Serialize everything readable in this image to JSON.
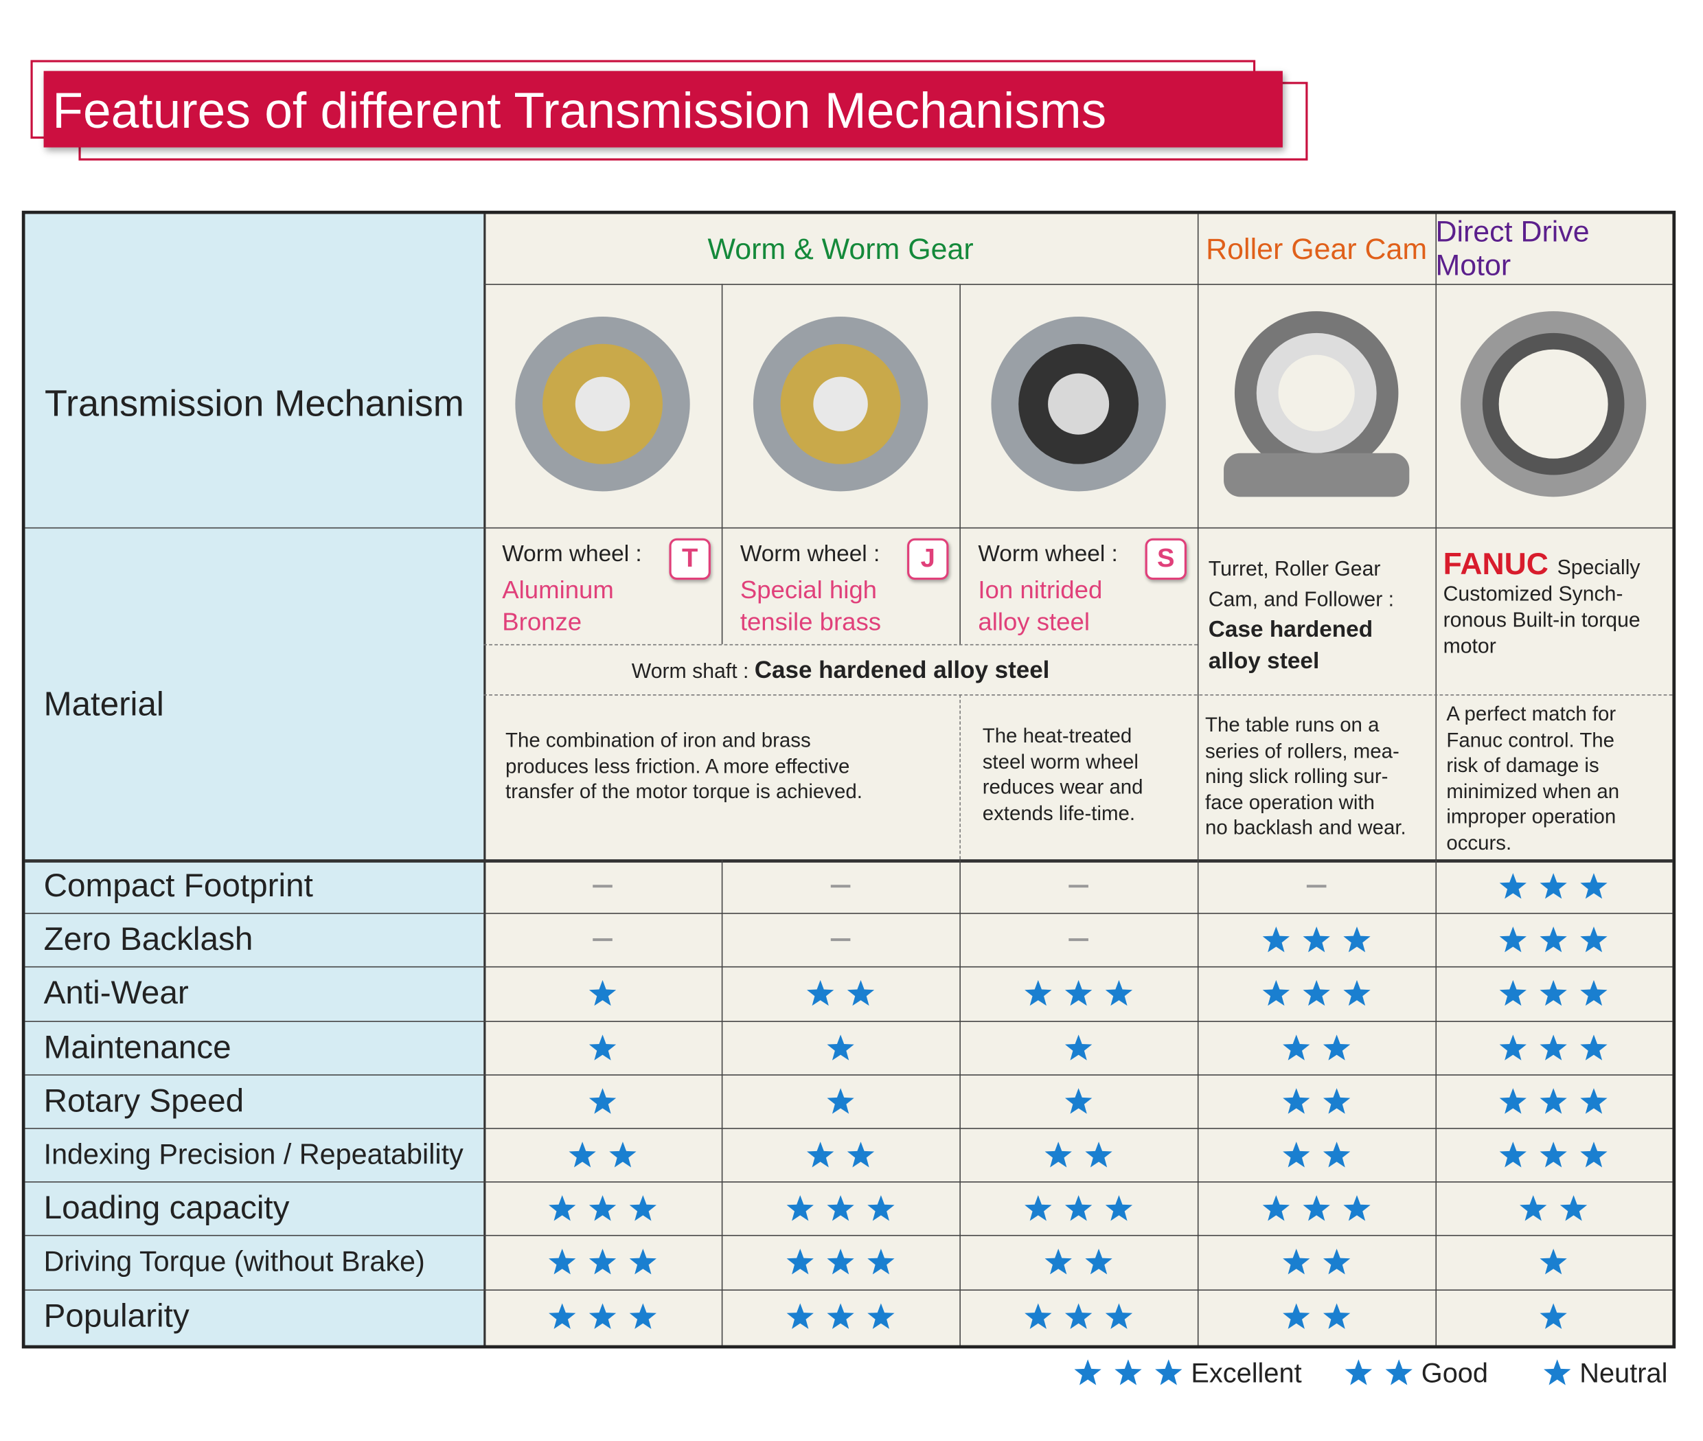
{
  "header": {
    "title": "Features of different Transmission Mechanisms"
  },
  "table": {
    "corner": "Transmission  Mechanism",
    "groups": [
      {
        "name": "Worm & Worm Gear",
        "color": "#14893a"
      },
      {
        "name": "Roller Gear Cam",
        "color": "#e0601a"
      },
      {
        "name": "Direct Drive Motor",
        "color": "#5b1f8c"
      }
    ],
    "material_label": "Material",
    "worm_wheels": [
      {
        "label": "Worm wheel :",
        "badge": "T",
        "material": "Aluminum\nBronze"
      },
      {
        "label": "Worm wheel :",
        "badge": "J",
        "material": "Special high\ntensile brass"
      },
      {
        "label": "Worm wheel :",
        "badge": "S",
        "material": "Ion nitrided\nalloy steel"
      }
    ],
    "worm_shaft": {
      "label": "Worm shaft :",
      "material": "Case hardened alloy steel"
    },
    "roller": {
      "text": "Turret, Roller Gear\nCam, and Follower :",
      "material": "Case hardened\nalloy steel"
    },
    "direct": {
      "brand": "FANUC",
      "text": "Specially\nCustomized Synch-\nronous Built-in torque\nmotor"
    },
    "descriptions": [
      "The combination of iron and brass\nproduces less friction. A more effective\ntransfer of the motor torque is achieved.",
      "The heat-treated\nsteel worm wheel\nreduces wear and\nextends life-time.",
      "The table runs on a\nseries of rollers, mea-\nning slick rolling sur-\nface operation with\nno backlash and wear.",
      "A perfect match for\nFanuc control. The\nrisk of damage is\nminimized when an\nimproper operation\noccurs."
    ],
    "rows": [
      {
        "feature": "Compact Footprint",
        "ratings": [
          0,
          0,
          0,
          0,
          3
        ]
      },
      {
        "feature": "Zero Backlash",
        "ratings": [
          0,
          0,
          0,
          3,
          3
        ]
      },
      {
        "feature": "Anti-Wear",
        "ratings": [
          1,
          2,
          3,
          3,
          3
        ]
      },
      {
        "feature": "Maintenance",
        "ratings": [
          1,
          1,
          1,
          2,
          3
        ]
      },
      {
        "feature": "Rotary Speed",
        "ratings": [
          1,
          1,
          1,
          2,
          3
        ]
      },
      {
        "feature": "Indexing Precision / Repeatability",
        "ratings": [
          2,
          2,
          2,
          2,
          3
        ]
      },
      {
        "feature": "Loading capacity",
        "ratings": [
          3,
          3,
          3,
          3,
          2
        ]
      },
      {
        "feature": "Driving Torque (without Brake)",
        "ratings": [
          3,
          3,
          2,
          2,
          1
        ]
      },
      {
        "feature": "Popularity",
        "ratings": [
          3,
          3,
          3,
          2,
          1
        ]
      }
    ],
    "star_color": "#1a7fd0"
  },
  "legend": [
    {
      "rating": 3,
      "label": "Excellent"
    },
    {
      "rating": 2,
      "label": "Good"
    },
    {
      "rating": 1,
      "label": "Neutral"
    }
  ]
}
